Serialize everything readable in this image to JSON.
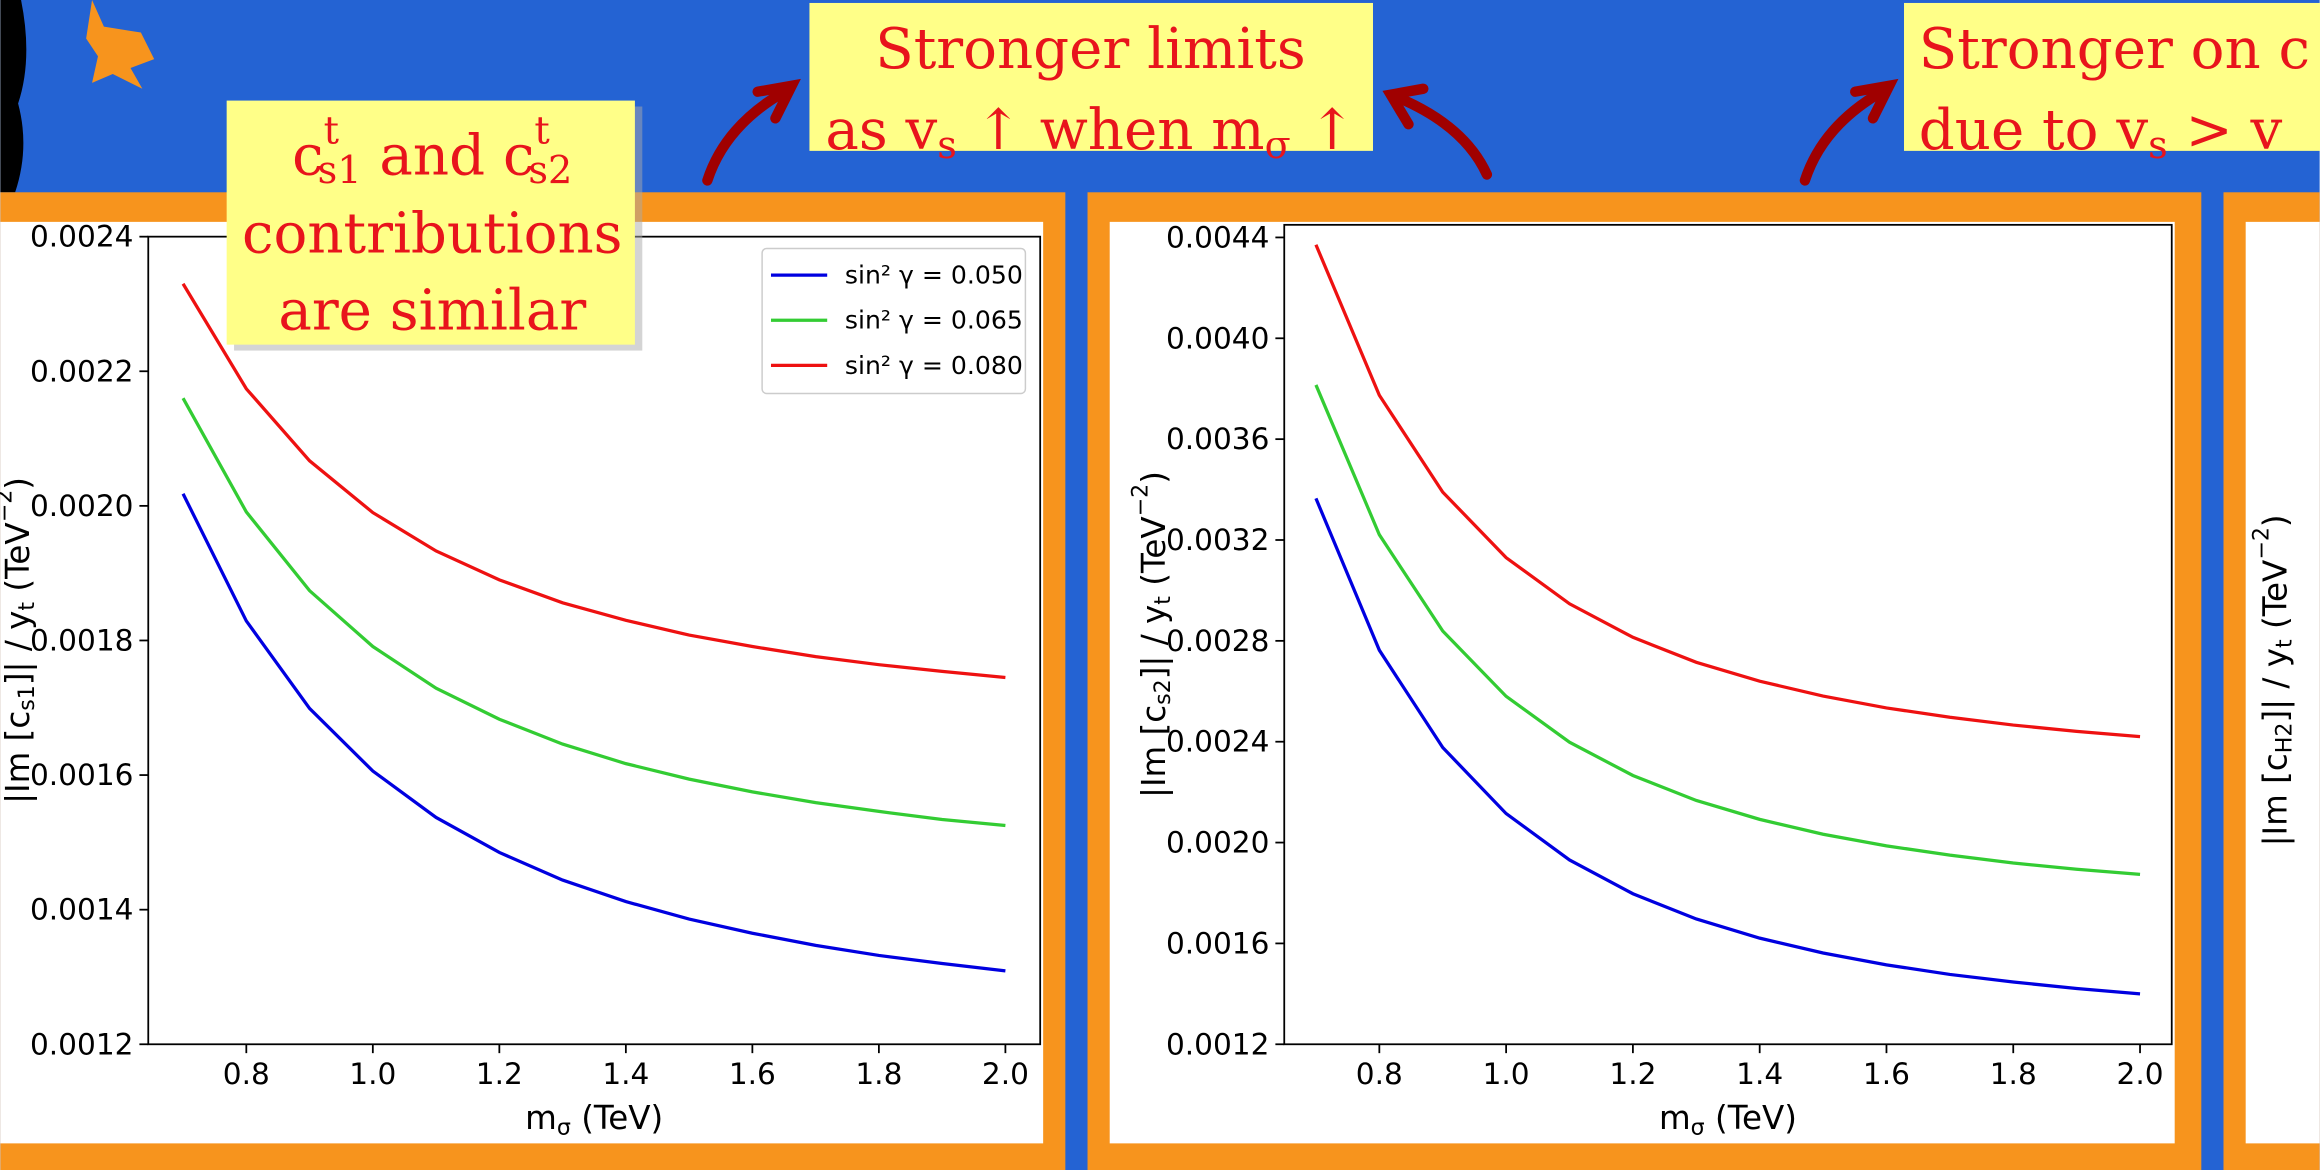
{
  "chart_data": [
    {
      "type": "line",
      "xlabel": [
        {
          "t": "m",
          "sub": "σ"
        },
        "  (TeV)"
      ],
      "ylabel": [
        "|Im [",
        {
          "t": "c",
          "sub": "s1"
        },
        "]| / ",
        {
          "t": "y",
          "sub": "t"
        },
        "  (TeV",
        {
          "sup": "−2"
        },
        ")"
      ],
      "x": [
        0.7,
        0.8,
        0.9,
        1.0,
        1.1,
        1.2,
        1.3,
        1.4,
        1.5,
        1.6,
        1.7,
        1.8,
        1.9,
        2.0
      ],
      "series": [
        {
          "name": "sin² γ = 0.050",
          "color": "#0000e0",
          "values": [
            0.002018,
            0.001829,
            0.001699,
            0.001606,
            0.001537,
            0.001485,
            0.001444,
            0.001412,
            0.001386,
            0.001365,
            0.001347,
            0.001332,
            0.00132,
            0.001309
          ]
        },
        {
          "name": "sin² γ = 0.065",
          "color": "#33cc33",
          "values": [
            0.00216,
            0.001991,
            0.001874,
            0.001791,
            0.001729,
            0.001683,
            0.001646,
            0.001617,
            0.001594,
            0.001575,
            0.001559,
            0.001546,
            0.001534,
            0.001525
          ]
        },
        {
          "name": "sin² γ = 0.080",
          "color": "#ee1111",
          "values": [
            0.00233,
            0.002174,
            0.002067,
            0.00199,
            0.001933,
            0.00189,
            0.001856,
            0.00183,
            0.001808,
            0.001791,
            0.001776,
            0.001764,
            0.001754,
            0.001745
          ]
        }
      ],
      "xlim": [
        0.645,
        2.055
      ],
      "xticks": [
        0.8,
        {
          "value": 1,
          "label": "1.0"
        },
        1.2,
        1.4,
        1.6,
        1.8,
        {
          "value": 2,
          "label": "2.0"
        }
      ],
      "ylim": [
        0.0012,
        0.0024
      ],
      "yticks": [
        0.0012,
        0.0014,
        0.0016,
        0.0018,
        {
          "value": 0.002,
          "label": "0.0020"
        },
        0.0022,
        0.0024
      ],
      "legend": "upper right"
    },
    {
      "type": "line",
      "xlabel": [
        {
          "t": "m",
          "sub": "σ"
        },
        "  (TeV)"
      ],
      "ylabel": [
        "|Im [",
        {
          "t": "c",
          "sub": "s2"
        },
        "]| / ",
        {
          "t": "y",
          "sub": "t"
        },
        "  (TeV",
        {
          "sup": "−2"
        },
        ")"
      ],
      "x": [
        0.7,
        0.8,
        0.9,
        1.0,
        1.1,
        1.2,
        1.3,
        1.4,
        1.5,
        1.6,
        1.7,
        1.8,
        1.9,
        2.0
      ],
      "series": [
        {
          "name": "sin² γ = 0.050",
          "color": "#0000e0",
          "values": [
            0.003365,
            0.002763,
            0.002377,
            0.002115,
            0.001931,
            0.001797,
            0.001697,
            0.001621,
            0.001562,
            0.001515,
            0.001477,
            0.001447,
            0.001421,
            0.0014
          ]
        },
        {
          "name": "sin² γ = 0.065",
          "color": "#33cc33",
          "values": [
            0.003815,
            0.003221,
            0.002839,
            0.00258,
            0.002398,
            0.002266,
            0.002167,
            0.002092,
            0.002033,
            0.001987,
            0.00195,
            0.001919,
            0.001894,
            0.001874
          ]
        },
        {
          "name": "sin² γ = 0.080",
          "color": "#ee1111",
          "values": [
            0.004371,
            0.003774,
            0.00339,
            0.00313,
            0.002947,
            0.002814,
            0.002715,
            0.00264,
            0.002581,
            0.002534,
            0.002497,
            0.002466,
            0.002441,
            0.00242
          ]
        }
      ],
      "xlim": [
        0.65,
        2.05
      ],
      "xticks": [
        0.8,
        {
          "value": 1,
          "label": "1.0"
        },
        1.2,
        1.4,
        1.6,
        1.8,
        {
          "value": 2,
          "label": "2.0"
        }
      ],
      "ylim": [
        0.0012,
        0.00445
      ],
      "yticks": [
        0.0012,
        0.0016,
        {
          "value": 0.002,
          "label": "0.0020"
        },
        0.0024,
        0.0028,
        0.0032,
        0.0036,
        {
          "value": 0.004,
          "label": "0.0040"
        },
        0.0044
      ]
    }
  ],
  "cropped_panel": {
    "ylabel": [
      "|Im [",
      {
        "t": "c",
        "sub": "H2"
      },
      "]| / ",
      {
        "t": "y",
        "sub": "t"
      },
      "  (TeV",
      {
        "sup": "−2"
      },
      ")"
    ]
  },
  "annotations": [
    [
      [
        {
          "t": "c",
          "sup": "t",
          "sub": "s1"
        },
        " and ",
        {
          "t": "c",
          "sup": "t",
          "sub": "s2"
        }
      ],
      [
        "contributions"
      ],
      [
        "are similar"
      ]
    ],
    [
      [
        "Stronger limits"
      ],
      [
        "as ",
        {
          "t": "v",
          "sub": "s"
        },
        " ↑ when ",
        {
          "t": "m",
          "sub": "σ"
        },
        " ↑"
      ]
    ],
    [
      [
        "Stronger on c"
      ],
      [
        "due to ",
        {
          "t": "v",
          "sub": "s"
        },
        " > v"
      ]
    ]
  ]
}
